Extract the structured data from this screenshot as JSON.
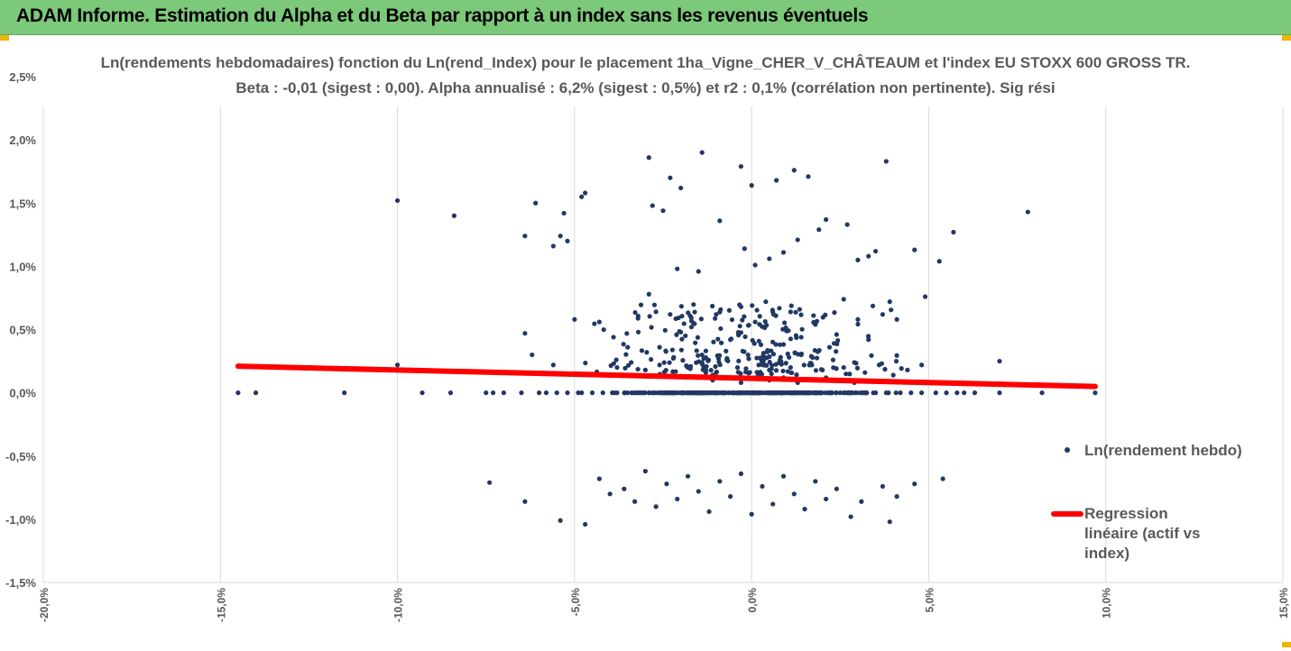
{
  "header": {
    "title": "ADAM Informe. Estimation du Alpha et du Beta par rapport à un index sans les revenus éventuels"
  },
  "colors": {
    "banner": "#7dc97a",
    "points": "#203864",
    "regression": "#ff0000",
    "accent": "#f0b400"
  },
  "chart_data": {
    "type": "scatter",
    "title": "Ln(rendements hebdomadaires) fonction du Ln(rend_Index) pour le placement 1ha_Vigne_CHER_V_CHÂTEAUM et l'index EU STOXX 600 GROSS TR.",
    "subtitle": "Beta : -0,01 (sigest : 0,00). Alpha annualisé : 6,2% (sigest : 0,5%) et r2 : 0,1% (corrélation non pertinente). Sig rési",
    "xlabel": "",
    "ylabel": "",
    "xlim": [
      -20,
      15
    ],
    "ylim": [
      -1.5,
      2.5
    ],
    "x_ticks": [
      "-20,0%",
      "-15,0%",
      "-10,0%",
      "-5,0%",
      "0,0%",
      "5,0%",
      "10,0%",
      "15,0%"
    ],
    "y_ticks": [
      "2,5%",
      "2,0%",
      "1,5%",
      "1,0%",
      "0,5%",
      "0,0%",
      "-0,5%",
      "-1,0%",
      "-1,5%"
    ],
    "grid": "vertical",
    "legend_position": "right",
    "series": [
      {
        "name": "Ln(rendement hebdo)",
        "kind": "scatter",
        "points": [
          [
            -14.5,
            0
          ],
          [
            -14,
            0
          ],
          [
            -11.5,
            0
          ],
          [
            -9.3,
            0
          ],
          [
            -8.5,
            0
          ],
          [
            -7.5,
            0
          ],
          [
            -7.3,
            0
          ],
          [
            -7,
            0
          ],
          [
            -6.5,
            0
          ],
          [
            -6,
            0
          ],
          [
            -5.8,
            0
          ],
          [
            -5.5,
            0
          ],
          [
            -5.2,
            0
          ],
          [
            -4.8,
            0
          ],
          [
            -4.5,
            0
          ],
          [
            -4.2,
            0
          ],
          [
            -3.8,
            0
          ],
          [
            -3.5,
            0
          ],
          [
            -3.2,
            0
          ],
          [
            -2.8,
            0
          ],
          [
            -2.5,
            0
          ],
          [
            -2.2,
            0
          ],
          [
            -1.8,
            0
          ],
          [
            -1.5,
            0
          ],
          [
            -1.2,
            0
          ],
          [
            -0.8,
            0
          ],
          [
            -0.5,
            0
          ],
          [
            -0.2,
            0
          ],
          [
            0.2,
            0
          ],
          [
            0.5,
            0
          ],
          [
            0.8,
            0
          ],
          [
            1.2,
            0
          ],
          [
            1.5,
            0
          ],
          [
            1.8,
            0
          ],
          [
            2.2,
            0
          ],
          [
            2.5,
            0
          ],
          [
            2.8,
            0
          ],
          [
            3.2,
            0
          ],
          [
            3.5,
            0
          ],
          [
            3.8,
            0
          ],
          [
            4.2,
            0
          ],
          [
            4.5,
            0
          ],
          [
            4.8,
            0
          ],
          [
            5.2,
            0
          ],
          [
            5.5,
            0
          ],
          [
            5.8,
            0
          ],
          [
            6,
            0
          ],
          [
            6.3,
            0
          ],
          [
            7,
            0
          ],
          [
            8.2,
            0
          ],
          [
            9.7,
            0
          ],
          [
            -10,
            1.52
          ],
          [
            -8.4,
            1.4
          ],
          [
            -6.1,
            1.5
          ],
          [
            -6.4,
            1.24
          ],
          [
            -5.6,
            1.16
          ],
          [
            -5.4,
            1.24
          ],
          [
            -5.3,
            1.42
          ],
          [
            -5.2,
            1.2
          ],
          [
            -4.8,
            1.55
          ],
          [
            -4.7,
            1.58
          ],
          [
            -2.9,
            1.86
          ],
          [
            -2.8,
            1.48
          ],
          [
            -2.5,
            1.44
          ],
          [
            -2.3,
            1.7
          ],
          [
            -2.0,
            1.62
          ],
          [
            -1.4,
            1.9
          ],
          [
            -0.3,
            1.79
          ],
          [
            0,
            1.64
          ],
          [
            0.7,
            1.68
          ],
          [
            1.2,
            1.76
          ],
          [
            1.6,
            1.71
          ],
          [
            3.8,
            1.83
          ],
          [
            7.8,
            1.43
          ],
          [
            5.7,
            1.27
          ],
          [
            4.6,
            1.13
          ],
          [
            5.3,
            1.04
          ],
          [
            -2.1,
            0.98
          ],
          [
            -1.5,
            0.96
          ],
          [
            -0.9,
            1.36
          ],
          [
            -0.2,
            1.14
          ],
          [
            0.1,
            1.01
          ],
          [
            0.5,
            1.06
          ],
          [
            0.9,
            1.11
          ],
          [
            1.3,
            1.21
          ],
          [
            1.9,
            1.29
          ],
          [
            2.1,
            1.37
          ],
          [
            2.7,
            1.33
          ],
          [
            3.0,
            1.05
          ],
          [
            3.3,
            1.08
          ],
          [
            3.5,
            1.12
          ],
          [
            -10,
            0.22
          ],
          [
            -6.4,
            0.47
          ],
          [
            -6.2,
            0.3
          ],
          [
            -5.6,
            0.22
          ],
          [
            -5.0,
            0.58
          ],
          [
            -4.3,
            0.56
          ],
          [
            -3.9,
            0.44
          ],
          [
            -3.5,
            0.36
          ],
          [
            -3.2,
            0.48
          ],
          [
            -2.9,
            0.78
          ],
          [
            -2.6,
            0.36
          ],
          [
            -2.3,
            0.62
          ],
          [
            -2.0,
            0.48
          ],
          [
            -1.7,
            0.52
          ],
          [
            -1.4,
            0.3
          ],
          [
            -1.0,
            0.62
          ],
          [
            -0.6,
            0.42
          ],
          [
            -0.3,
            0.68
          ],
          [
            0.1,
            0.56
          ],
          [
            0.4,
            0.72
          ],
          [
            0.8,
            0.38
          ],
          [
            1.1,
            0.64
          ],
          [
            1.4,
            0.44
          ],
          [
            1.8,
            0.54
          ],
          [
            2.2,
            0.36
          ],
          [
            2.6,
            0.74
          ],
          [
            3.0,
            0.58
          ],
          [
            3.3,
            0.42
          ],
          [
            3.7,
            0.62
          ],
          [
            4.1,
            0.58
          ],
          [
            4.9,
            0.76
          ],
          [
            7.0,
            0.25
          ],
          [
            3.9,
            0.72
          ],
          [
            -3.8,
            0.2
          ],
          [
            -3.4,
            0.24
          ],
          [
            -3.0,
            0.18
          ],
          [
            -2.6,
            0.22
          ],
          [
            -2.2,
            0.28
          ],
          [
            -1.8,
            0.2
          ],
          [
            -1.4,
            0.24
          ],
          [
            -1.0,
            0.16
          ],
          [
            -0.7,
            0.26
          ],
          [
            -0.4,
            0.2
          ],
          [
            -0.1,
            0.3
          ],
          [
            0.2,
            0.22
          ],
          [
            0.5,
            0.18
          ],
          [
            0.8,
            0.26
          ],
          [
            1.1,
            0.2
          ],
          [
            1.4,
            0.3
          ],
          [
            1.7,
            0.22
          ],
          [
            2.0,
            0.18
          ],
          [
            2.3,
            0.26
          ],
          [
            2.6,
            0.2
          ],
          [
            2.9,
            0.24
          ],
          [
            3.2,
            0.16
          ],
          [
            3.6,
            0.22
          ],
          [
            4.0,
            0.14
          ],
          [
            4.4,
            0.18
          ],
          [
            4.8,
            0.22
          ],
          [
            -1.5,
            0.12
          ],
          [
            -1.1,
            0.1
          ],
          [
            -0.7,
            0.12
          ],
          [
            -0.3,
            0.08
          ],
          [
            0.1,
            0.12
          ],
          [
            0.5,
            0.1
          ],
          [
            0.9,
            0.12
          ],
          [
            1.3,
            0.08
          ],
          [
            1.7,
            0.1
          ],
          [
            2.1,
            0.12
          ],
          [
            2.5,
            0.1
          ],
          [
            2.9,
            0.08
          ],
          [
            -7.4,
            -0.71
          ],
          [
            -6.4,
            -0.86
          ],
          [
            -5.4,
            -1.01
          ],
          [
            -4.7,
            -1.04
          ],
          [
            -4.3,
            -0.68
          ],
          [
            -4.0,
            -0.8
          ],
          [
            -3.6,
            -0.76
          ],
          [
            -3.3,
            -0.86
          ],
          [
            -3.0,
            -0.62
          ],
          [
            -2.7,
            -0.9
          ],
          [
            -2.4,
            -0.72
          ],
          [
            -2.1,
            -0.84
          ],
          [
            -1.8,
            -0.66
          ],
          [
            -1.5,
            -0.78
          ],
          [
            -1.2,
            -0.94
          ],
          [
            -0.9,
            -0.7
          ],
          [
            -0.6,
            -0.82
          ],
          [
            -0.3,
            -0.64
          ],
          [
            0,
            -0.96
          ],
          [
            0.3,
            -0.74
          ],
          [
            0.6,
            -0.88
          ],
          [
            0.9,
            -0.66
          ],
          [
            1.2,
            -0.8
          ],
          [
            1.5,
            -0.92
          ],
          [
            1.8,
            -0.7
          ],
          [
            2.1,
            -0.84
          ],
          [
            2.4,
            -0.76
          ],
          [
            2.8,
            -0.98
          ],
          [
            3.1,
            -0.86
          ],
          [
            3.7,
            -0.74
          ],
          [
            3.9,
            -1.02
          ],
          [
            4.6,
            -0.72
          ],
          [
            5.4,
            -0.68
          ],
          [
            4.1,
            -0.82
          ]
        ]
      },
      {
        "name": "Regression linéaire (actif vs index)",
        "kind": "line",
        "points": [
          [
            -14.5,
            0.21
          ],
          [
            9.7,
            0.05
          ]
        ]
      }
    ]
  }
}
